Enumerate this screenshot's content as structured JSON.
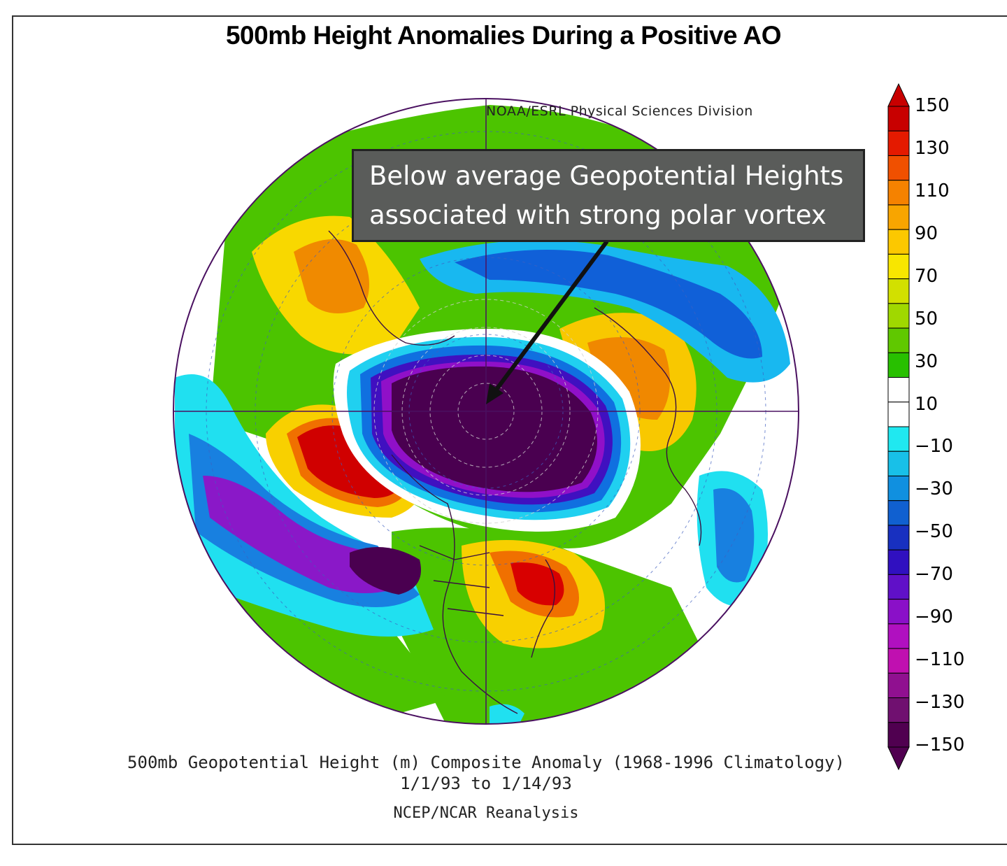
{
  "title": "500mb Height Anomalies During a Positive AO",
  "credit_top": "NOAA/ESRL Physical Sciences Division",
  "callout": {
    "line1": "Below average Geopotential Heights",
    "line2": "associated with strong polar vortex"
  },
  "colorbar": {
    "labels": [
      "150",
      "130",
      "110",
      "90",
      "70",
      "50",
      "30",
      "10",
      "−10",
      "−30",
      "−50",
      "−70",
      "−90",
      "−110",
      "−130",
      "−150"
    ],
    "colors": [
      "#c80000",
      "#e41a00",
      "#f05000",
      "#f58200",
      "#f8a500",
      "#fcc800",
      "#f8e600",
      "#d2e000",
      "#a0d800",
      "#60c800",
      "#28c000",
      "#ffffff",
      "#ffffff",
      "#20e8f0",
      "#18c0e8",
      "#1090e0",
      "#1060d0",
      "#1830c0",
      "#3010c0",
      "#6010c8",
      "#8a10c8",
      "#b010c0",
      "#c010b0",
      "#901090",
      "#701070",
      "#500050"
    ]
  },
  "caption": {
    "line1": "500mb Geopotential Height (m) Composite Anomaly (1968-1996 Climatology)",
    "line2": "1/1/93  to 1/14/93",
    "line3": "NCEP/NCAR Reanalysis"
  }
}
